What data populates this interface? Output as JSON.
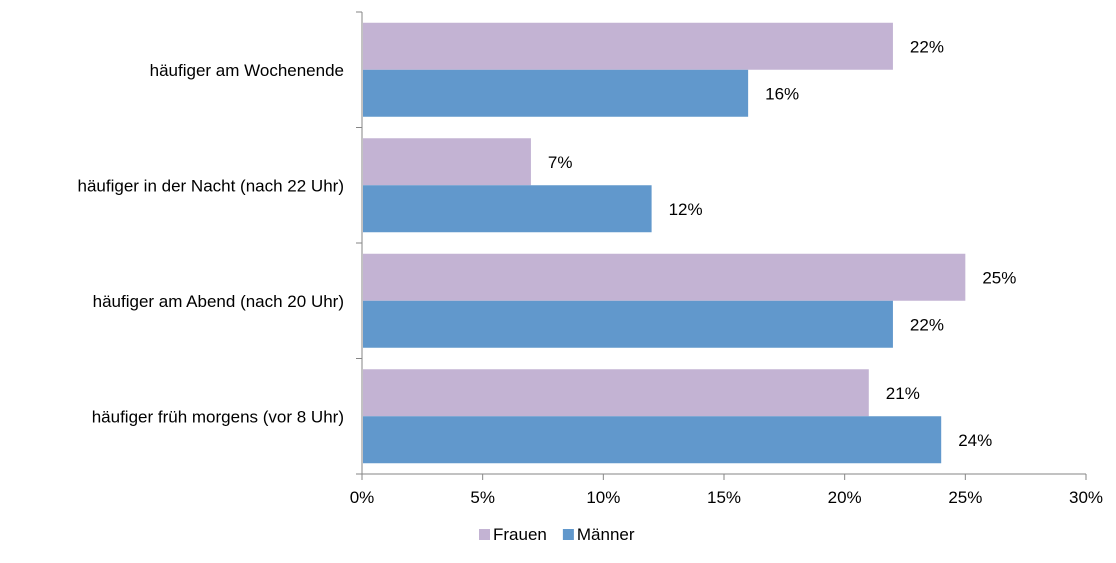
{
  "chart_data": {
    "type": "bar",
    "orientation": "horizontal",
    "categories": [
      "häufiger am Wochenende",
      "häufiger in der Nacht (nach 22 Uhr)",
      "häufiger am Abend (nach 20 Uhr)",
      "häufiger früh morgens (vor 8 Uhr)"
    ],
    "series": [
      {
        "name": "Frauen",
        "color": "#c3b3d3",
        "values": [
          22,
          7,
          25,
          21
        ],
        "labels": [
          "22%",
          "7%",
          "25%",
          "21%"
        ]
      },
      {
        "name": "Männer",
        "color": "#6198cc",
        "values": [
          16,
          12,
          22,
          24
        ],
        "labels": [
          "16%",
          "12%",
          "22%",
          "24%"
        ]
      }
    ],
    "xlim": [
      0,
      30
    ],
    "xticks": [
      0,
      5,
      10,
      15,
      20,
      25,
      30
    ],
    "xtick_labels": [
      "0%",
      "5%",
      "10%",
      "15%",
      "20%",
      "25%",
      "30%"
    ],
    "grid": false,
    "legend": "bottom-center",
    "axis_color": "#868686"
  }
}
